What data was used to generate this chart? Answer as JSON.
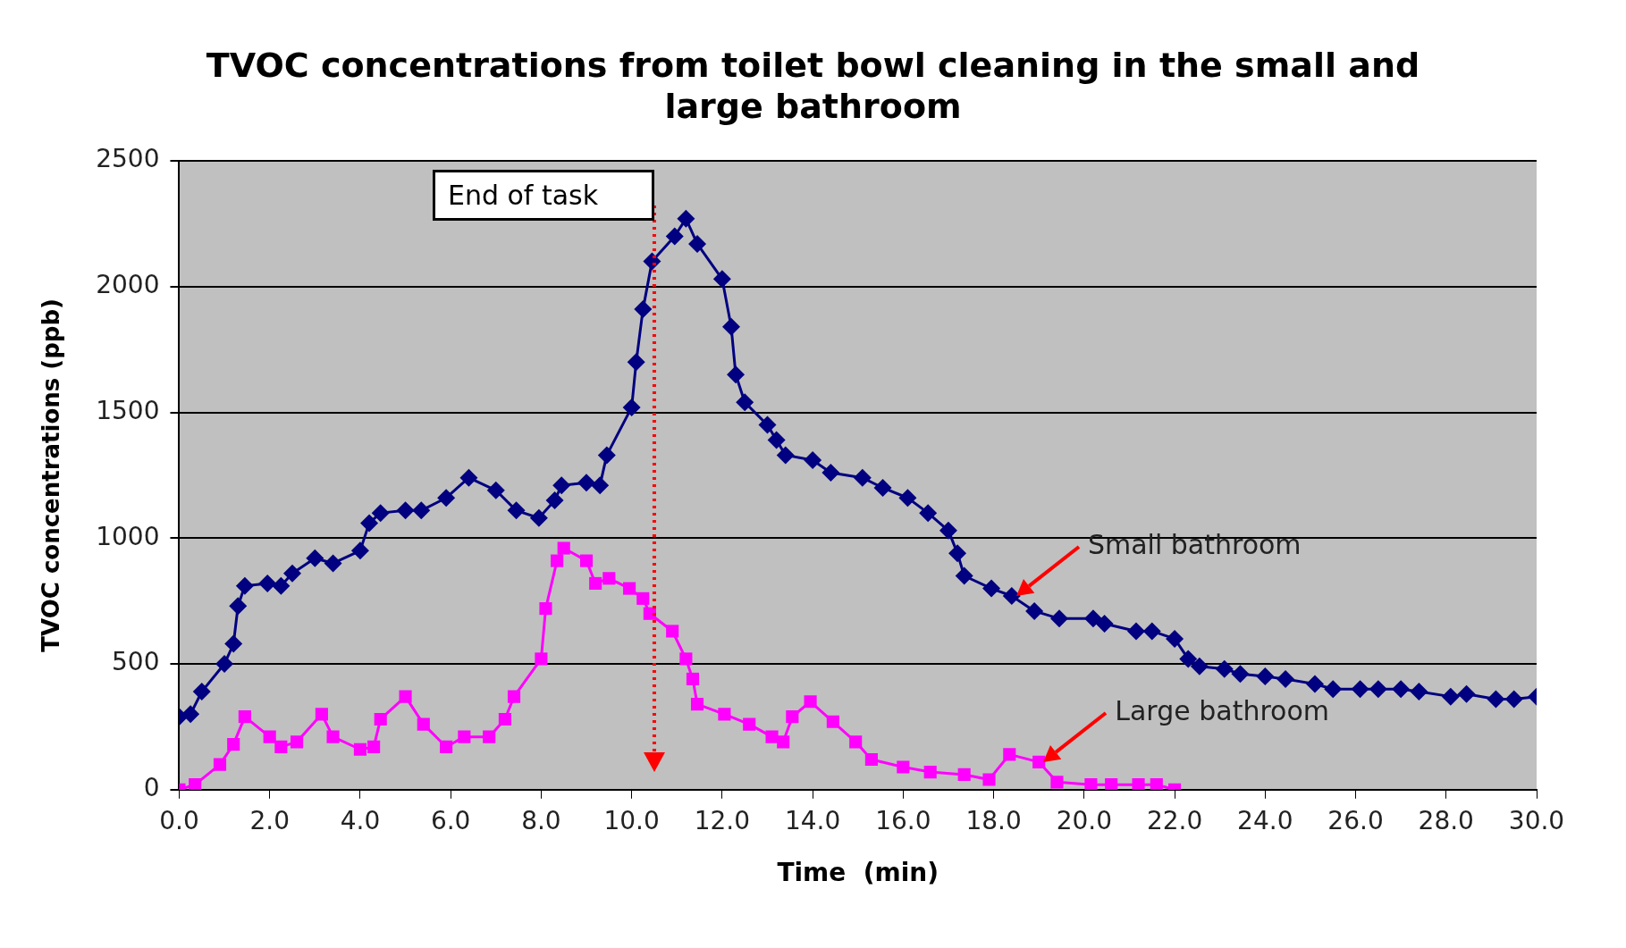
{
  "chart_data": {
    "type": "line",
    "title": "TVOC concentrations from toilet bowl cleaning in the small and large bathroom",
    "xlabel": "Time  (min)",
    "ylabel": "TVOC concentrations (ppb)",
    "xlim": [
      0,
      30
    ],
    "xticks": [
      {
        "value": 0,
        "label": "0.0"
      },
      {
        "value": 2,
        "label": "2.0"
      },
      {
        "value": 4,
        "label": "4.0"
      },
      {
        "value": 6,
        "label": "6.0"
      },
      {
        "value": 8,
        "label": "8.0"
      },
      {
        "value": 10,
        "label": "10.0"
      },
      {
        "value": 12,
        "label": "12.0"
      },
      {
        "value": 14,
        "label": "14.0"
      },
      {
        "value": 16,
        "label": "16.0"
      },
      {
        "value": 18,
        "label": "18.0"
      },
      {
        "value": 20,
        "label": "20.0"
      },
      {
        "value": 22,
        "label": "22.0"
      },
      {
        "value": 24,
        "label": "24.0"
      },
      {
        "value": 26,
        "label": "26.0"
      },
      {
        "value": 28,
        "label": "28.0"
      },
      {
        "value": 30,
        "label": "30.0"
      }
    ],
    "ylim": [
      0,
      2500
    ],
    "yticks": [
      0,
      500,
      1000,
      1500,
      2000,
      2500
    ],
    "grid": "y",
    "legend": false,
    "series": [
      {
        "color": "#000080",
        "marker": "diamond",
        "x": [
          0,
          0.25,
          0.5,
          1.0,
          1.2,
          1.3,
          1.45,
          1.95,
          2.25,
          2.5,
          3.0,
          3.4,
          4.0,
          4.2,
          4.45,
          5.0,
          5.35,
          5.9,
          6.4,
          7.0,
          7.45,
          7.95,
          8.3,
          8.45,
          9.0,
          9.3,
          9.45,
          10.0,
          10.1,
          10.25,
          10.45,
          10.95,
          11.2,
          11.45,
          12.0,
          12.2,
          12.3,
          12.5,
          13.0,
          13.2,
          13.4,
          14.0,
          14.4,
          15.1,
          15.55,
          16.1,
          16.55,
          17.0,
          17.2,
          17.35,
          17.95,
          18.4,
          18.9,
          19.45,
          20.2,
          20.45,
          21.15,
          21.5,
          22.0,
          22.3,
          22.55,
          23.1,
          23.45,
          24.0,
          24.45,
          25.1,
          25.5,
          26.1,
          26.5,
          27.0,
          27.4,
          28.1,
          28.45,
          29.1,
          29.5,
          30.0
        ],
        "values": [
          290,
          300,
          390,
          500,
          580,
          730,
          810,
          820,
          810,
          860,
          920,
          900,
          950,
          1060,
          1100,
          1110,
          1110,
          1160,
          1240,
          1190,
          1110,
          1080,
          1150,
          1210,
          1220,
          1210,
          1330,
          1520,
          1700,
          1910,
          2100,
          2200,
          2270,
          2170,
          2030,
          1840,
          1650,
          1540,
          1450,
          1390,
          1330,
          1310,
          1260,
          1240,
          1200,
          1160,
          1100,
          1030,
          940,
          850,
          800,
          770,
          710,
          680,
          680,
          660,
          630,
          630,
          600,
          520,
          490,
          480,
          460,
          450,
          440,
          420,
          400,
          400,
          400,
          400,
          390,
          370,
          380,
          360,
          360,
          370
        ]
      },
      {
        "color": "#ff00ff",
        "marker": "square",
        "x": [
          0,
          0.35,
          0.9,
          1.2,
          1.45,
          2.0,
          2.25,
          2.6,
          3.15,
          3.4,
          4.0,
          4.3,
          4.45,
          5.0,
          5.4,
          5.9,
          6.3,
          6.85,
          7.2,
          7.4,
          8.0,
          8.1,
          8.35,
          8.5,
          9.0,
          9.2,
          9.5,
          9.95,
          10.25,
          10.4,
          10.9,
          11.2,
          11.35,
          11.45,
          12.05,
          12.6,
          13.1,
          13.35,
          13.55,
          13.95,
          14.45,
          14.95,
          15.3,
          16.0,
          16.6,
          17.35,
          17.9,
          18.35,
          19.0,
          19.4,
          20.15,
          20.6,
          21.2,
          21.6,
          22.0
        ],
        "values": [
          0,
          20,
          100,
          180,
          290,
          210,
          170,
          190,
          300,
          210,
          160,
          170,
          280,
          370,
          260,
          170,
          210,
          210,
          280,
          370,
          520,
          720,
          910,
          960,
          910,
          820,
          840,
          800,
          760,
          700,
          630,
          520,
          440,
          340,
          300,
          260,
          210,
          190,
          290,
          350,
          270,
          190,
          120,
          90,
          70,
          60,
          40,
          140,
          110,
          30,
          20,
          20,
          20,
          20,
          0
        ]
      }
    ],
    "ref_lines": [
      {
        "axis": "x",
        "value": 10.5,
        "label": "End of task",
        "color": "#ff0000",
        "line_style": "dotted"
      }
    ],
    "annotations": [
      {
        "text": "Small bathroom",
        "x": 18.5,
        "y": 770
      },
      {
        "text": "Large bathroom",
        "x": 19.1,
        "y": 110
      }
    ]
  }
}
